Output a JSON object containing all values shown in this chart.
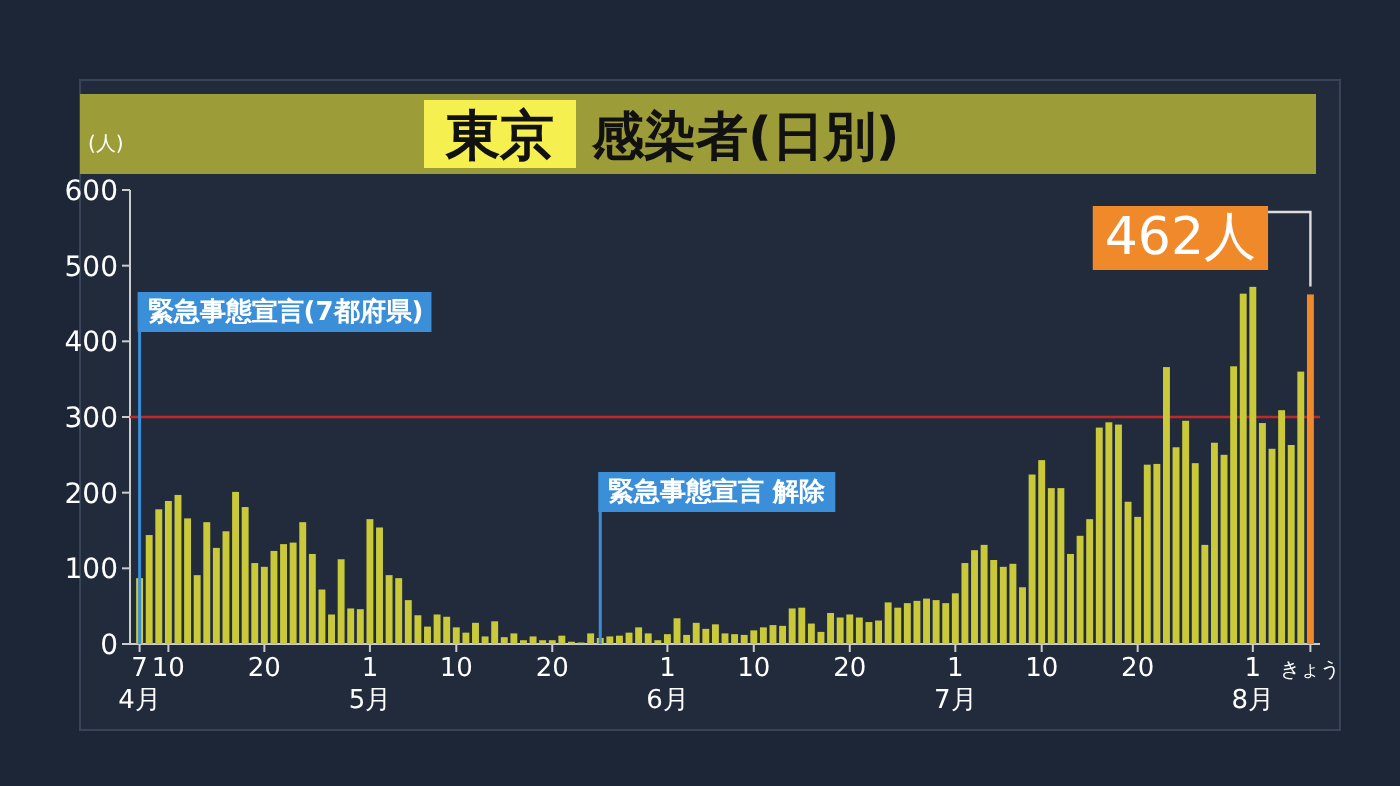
{
  "chart_data": {
    "type": "bar",
    "title": "東京 感染者(日別)",
    "ylabel": "(人)",
    "x": [
      "--04-07",
      "--04-08",
      "--04-09",
      "--04-10",
      "--04-11",
      "--04-12",
      "--04-13",
      "--04-14",
      "--04-15",
      "--04-16",
      "--04-17",
      "--04-18",
      "--04-19",
      "--04-20",
      "--04-21",
      "--04-22",
      "--04-23",
      "--04-24",
      "--04-25",
      "--04-26",
      "--04-27",
      "--04-28",
      "--04-29",
      "--04-30",
      "--05-01",
      "--05-02",
      "--05-03",
      "--05-04",
      "--05-05",
      "--05-06",
      "--05-07",
      "--05-08",
      "--05-09",
      "--05-10",
      "--05-11",
      "--05-12",
      "--05-13",
      "--05-14",
      "--05-15",
      "--05-16",
      "--05-17",
      "--05-18",
      "--05-19",
      "--05-20",
      "--05-21",
      "--05-22",
      "--05-23",
      "--05-24",
      "--05-25",
      "--05-26",
      "--05-27",
      "--05-28",
      "--05-29",
      "--05-30",
      "--05-31",
      "--06-01",
      "--06-02",
      "--06-03",
      "--06-04",
      "--06-05",
      "--06-06",
      "--06-07",
      "--06-08",
      "--06-09",
      "--06-10",
      "--06-11",
      "--06-12",
      "--06-13",
      "--06-14",
      "--06-15",
      "--06-16",
      "--06-17",
      "--06-18",
      "--06-19",
      "--06-20",
      "--06-21",
      "--06-22",
      "--06-23",
      "--06-24",
      "--06-25",
      "--06-26",
      "--06-27",
      "--06-28",
      "--06-29",
      "--06-30",
      "--07-01",
      "--07-02",
      "--07-03",
      "--07-04",
      "--07-05",
      "--07-06",
      "--07-07",
      "--07-08",
      "--07-09",
      "--07-10",
      "--07-11",
      "--07-12",
      "--07-13",
      "--07-14",
      "--07-15",
      "--07-16",
      "--07-17",
      "--07-18",
      "--07-19",
      "--07-20",
      "--07-21",
      "--07-22",
      "--07-23",
      "--07-24",
      "--07-25",
      "--07-26",
      "--07-27",
      "--07-28",
      "--07-29",
      "--07-30",
      "--07-31",
      "--08-01",
      "--08-02",
      "--08-03",
      "--08-04",
      "--08-05",
      "--08-06"
    ],
    "series": [
      {
        "color": "#c9c93a",
        "values": [
          87,
          144,
          178,
          189,
          197,
          166,
          91,
          161,
          127,
          149,
          201,
          181,
          107,
          102,
          123,
          132,
          134,
          161,
          119,
          72,
          39,
          112,
          47,
          46,
          165,
          154,
          91,
          87,
          58,
          38,
          23,
          39,
          36,
          22,
          15,
          28,
          10,
          30,
          9,
          14,
          5,
          10,
          5,
          5,
          11,
          3,
          2,
          14,
          8,
          10,
          11,
          15,
          22,
          14,
          5,
          13,
          34,
          12,
          28,
          20,
          26,
          14,
          13,
          12,
          18,
          22,
          25,
          24,
          47,
          48,
          27,
          16,
          41,
          35,
          39,
          35,
          29,
          31,
          55,
          48,
          54,
          57,
          60,
          58,
          54,
          67,
          107,
          124,
          131,
          111,
          102,
          106,
          75,
          224,
          243,
          206,
          206,
          119,
          143,
          165,
          286,
          293,
          290,
          188,
          168,
          237,
          238,
          366,
          260,
          295,
          239,
          131,
          266,
          250,
          367,
          463,
          472,
          292,
          258,
          309,
          263,
          360
        ]
      },
      {
        "color": "#f0892a",
        "x": [
          "--08-07"
        ],
        "values": [
          462
        ]
      }
    ],
    "xlim": [
      "--04-06",
      "--08-08"
    ],
    "xticks": [
      {
        "value": "--04-07",
        "label": "7\n4月"
      },
      {
        "value": "--04-10",
        "label": "10"
      },
      {
        "value": "--04-20",
        "label": "20"
      },
      {
        "value": "--05-01",
        "label": "1\n5月"
      },
      {
        "value": "--05-10",
        "label": "10"
      },
      {
        "value": "--05-20",
        "label": "20"
      },
      {
        "value": "--06-01",
        "label": "1\n6月"
      },
      {
        "value": "--06-10",
        "label": "10"
      },
      {
        "value": "--06-20",
        "label": "20"
      },
      {
        "value": "--07-01",
        "label": "1\n7月"
      },
      {
        "value": "--07-10",
        "label": "10"
      },
      {
        "value": "--07-20",
        "label": "20"
      },
      {
        "value": "--08-01",
        "label": "1\n8月"
      },
      {
        "value": "--08-07",
        "label": "きょう"
      }
    ],
    "annotations": [
      "462人"
    ],
    "ylim": [
      0,
      600
    ],
    "yticks": [
      0,
      100,
      200,
      300,
      400,
      500,
      600
    ],
    "ref_lines": [
      {
        "axis": "y",
        "value": 300,
        "color": "#c0282a"
      },
      {
        "axis": "x",
        "value": "--04-07",
        "label": "緊急事態宣言(7都府県)",
        "color": "#3a8fd8"
      },
      {
        "axis": "x",
        "value": "--05-25",
        "label": "緊急事態宣言 解除",
        "color": "#3a8fd8"
      }
    ]
  }
}
